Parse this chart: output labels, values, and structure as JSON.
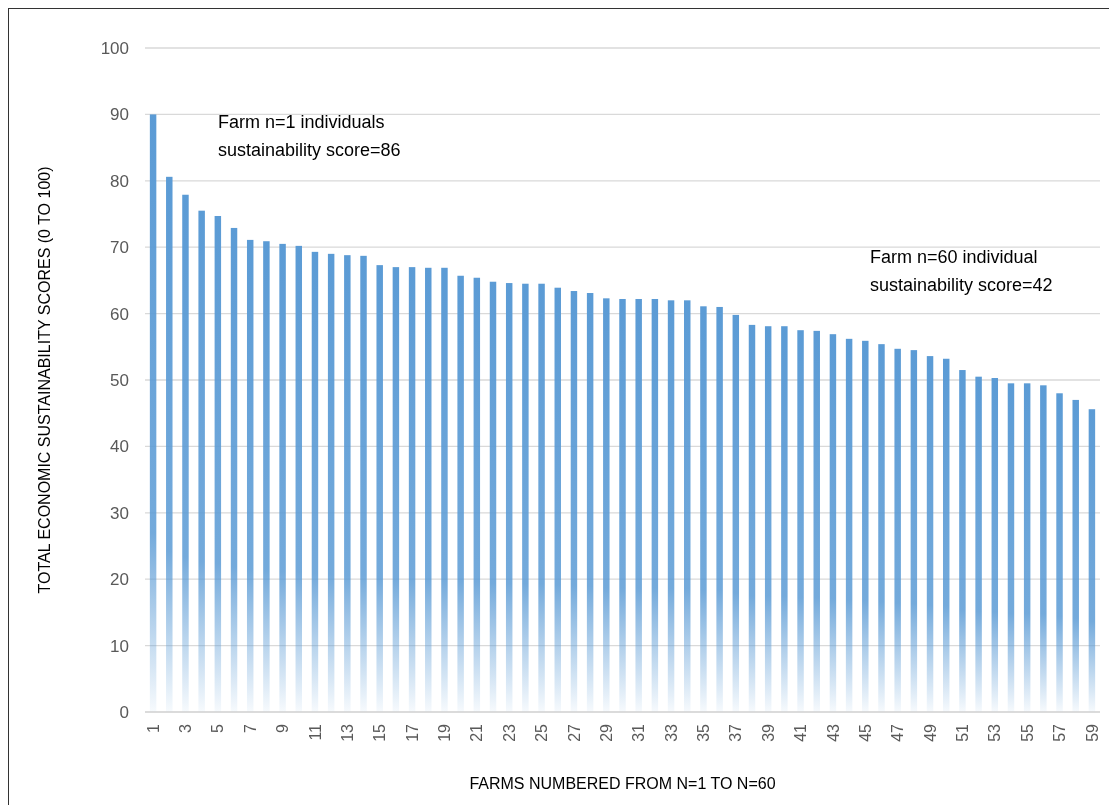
{
  "chart_data": {
    "type": "bar",
    "xlabel": "FARMS NUMBERED FROM N=1 TO N=60",
    "ylabel": "TOTAL ECONOMIC SUSTAINABILITY SCORES (0 TO 100)",
    "categories": [
      "1",
      null,
      "3",
      null,
      "5",
      null,
      "7",
      null,
      "9",
      null,
      "11",
      null,
      "13",
      null,
      "15",
      null,
      "17",
      null,
      "19",
      null,
      "21",
      null,
      "23",
      null,
      "25",
      null,
      "27",
      null,
      "29",
      null,
      "31",
      null,
      "33",
      null,
      "35",
      null,
      "37",
      null,
      "39",
      null,
      "41",
      null,
      "43",
      null,
      "45",
      null,
      "47",
      null,
      "49",
      null,
      "51",
      null,
      "53",
      null,
      "55",
      null,
      "57",
      null,
      "59"
    ],
    "values": [
      90,
      80.6,
      77.9,
      75.5,
      74.7,
      72.9,
      71.1,
      70.9,
      70.5,
      70.2,
      69.3,
      69.0,
      68.8,
      68.7,
      67.3,
      67.0,
      67.0,
      66.9,
      66.9,
      65.7,
      65.4,
      64.8,
      64.6,
      64.5,
      64.5,
      63.9,
      63.4,
      63.1,
      62.3,
      62.2,
      62.2,
      62.2,
      62.0,
      62.0,
      61.1,
      61.0,
      59.8,
      58.3,
      58.1,
      58.1,
      57.5,
      57.4,
      56.9,
      56.2,
      55.9,
      55.4,
      54.7,
      54.5,
      53.6,
      53.2,
      51.5,
      50.5,
      50.3,
      49.5,
      49.5,
      49.2,
      48.0,
      47.0,
      45.6
    ],
    "color": "#5b9bd5",
    "ylim": [
      0,
      100
    ],
    "yticks": [
      0,
      10,
      20,
      30,
      40,
      50,
      60,
      70,
      80,
      90,
      100
    ],
    "grid": "y",
    "annotations": [
      "Farm n=1 individuals\nsustainability score=86",
      "Farm n=60 individual\nsustainability score=42"
    ]
  }
}
